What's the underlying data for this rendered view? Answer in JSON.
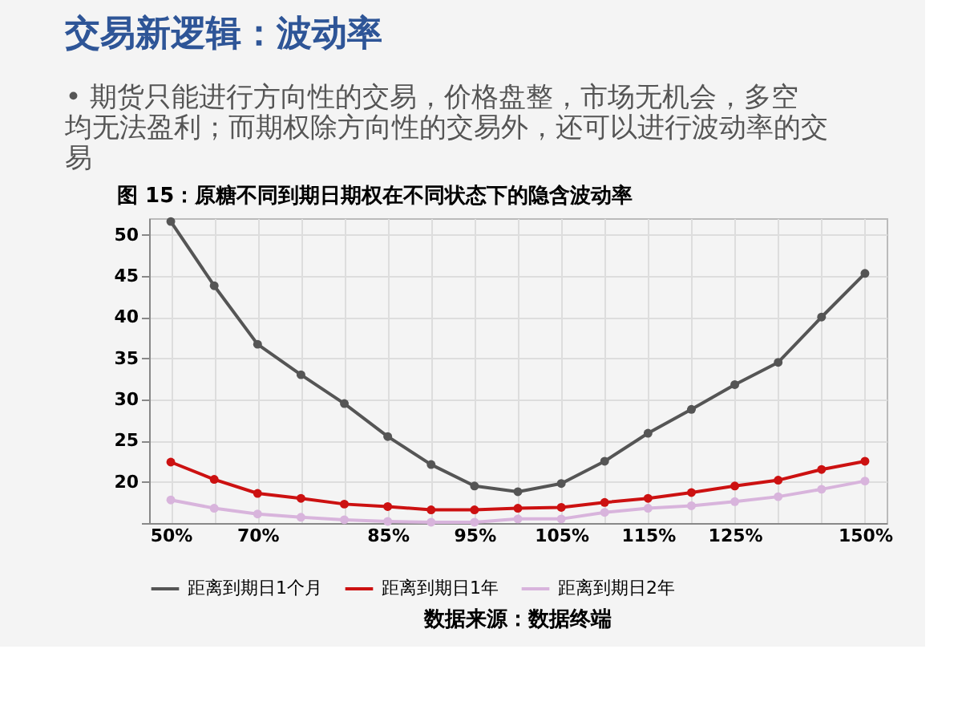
{
  "chart_data": {
    "type": "line",
    "title": "交易新逻辑：波动率",
    "subtitle": "• 期货只能进行方向性的交易，价格盘整，市场无机会，多空均无法盈利；而期权除方向性的交易外，还可以进行波动率的交易",
    "annotations": [
      "图 15：原糖不同到期日期权在不同状态下的隐含波动率",
      "数据来源：数据终端"
    ],
    "categories": [
      "50%",
      null,
      "70%",
      null,
      null,
      "85%",
      null,
      "95%",
      null,
      "105%",
      null,
      "115%",
      null,
      "125%",
      null,
      null,
      "150%"
    ],
    "series": [
      {
        "name": "距离到期日1个月",
        "color": "#555555",
        "values": [
          51.6,
          43.8,
          36.7,
          33.0,
          29.5,
          25.5,
          22.1,
          19.5,
          18.8,
          19.8,
          22.5,
          25.9,
          28.8,
          31.8,
          34.5,
          40.0,
          45.3
        ]
      },
      {
        "name": "距离到期日1年",
        "color": "#cc1111",
        "values": [
          22.4,
          20.3,
          18.6,
          18.0,
          17.3,
          17.0,
          16.6,
          16.6,
          16.8,
          16.9,
          17.5,
          18.0,
          18.7,
          19.5,
          20.2,
          21.5,
          22.5
        ]
      },
      {
        "name": "距离到期日2年",
        "color": "#d8b4dc",
        "values": [
          17.8,
          16.8,
          16.1,
          15.7,
          15.4,
          15.2,
          15.1,
          15.1,
          15.5,
          15.5,
          16.3,
          16.8,
          17.1,
          17.6,
          18.2,
          19.1,
          20.1
        ]
      }
    ],
    "ylim": [
      15,
      52
    ],
    "yticks": [
      {
        "value": 15,
        "label": null
      },
      20,
      25,
      30,
      35,
      40,
      45,
      50
    ],
    "grid": true,
    "legend": "bottom",
    "marker": "circle",
    "line_style": "solid"
  }
}
